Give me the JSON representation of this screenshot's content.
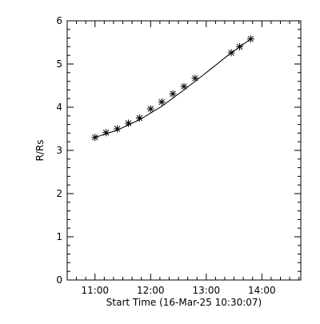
{
  "chart_data": {
    "type": "scatter",
    "title": "",
    "xlabel": "Start Time (16-Mar-25 10:30:07)",
    "ylabel": "R/Rs",
    "x_tick_labels": [
      "11:00",
      "12:00",
      "13:00",
      "14:00"
    ],
    "x_ticks_hours": [
      11,
      12,
      13,
      14
    ],
    "xlim_hours": [
      10.5,
      14.7
    ],
    "y_tick_labels": [
      "0",
      "1",
      "2",
      "3",
      "4",
      "5",
      "6"
    ],
    "y_ticks": [
      0,
      1,
      2,
      3,
      4,
      5,
      6
    ],
    "ylim": [
      0,
      6
    ],
    "grid": false,
    "legend": "none",
    "series": [
      {
        "marker": "asterisk",
        "x_hours": [
          11.0,
          11.2,
          11.4,
          11.6,
          11.8,
          12.0,
          12.2,
          12.4,
          12.6,
          12.8,
          13.45,
          13.6,
          13.8
        ],
        "y": [
          3.3,
          3.41,
          3.5,
          3.63,
          3.75,
          3.96,
          4.12,
          4.31,
          4.48,
          4.67,
          5.26,
          5.4,
          5.58
        ]
      }
    ],
    "fit": {
      "style": "line",
      "x_hours": [
        11.0,
        11.4,
        11.8,
        12.2,
        12.6,
        13.0,
        13.4,
        13.8
      ],
      "y": [
        3.3,
        3.47,
        3.71,
        4.02,
        4.4,
        4.8,
        5.21,
        5.58
      ]
    }
  }
}
